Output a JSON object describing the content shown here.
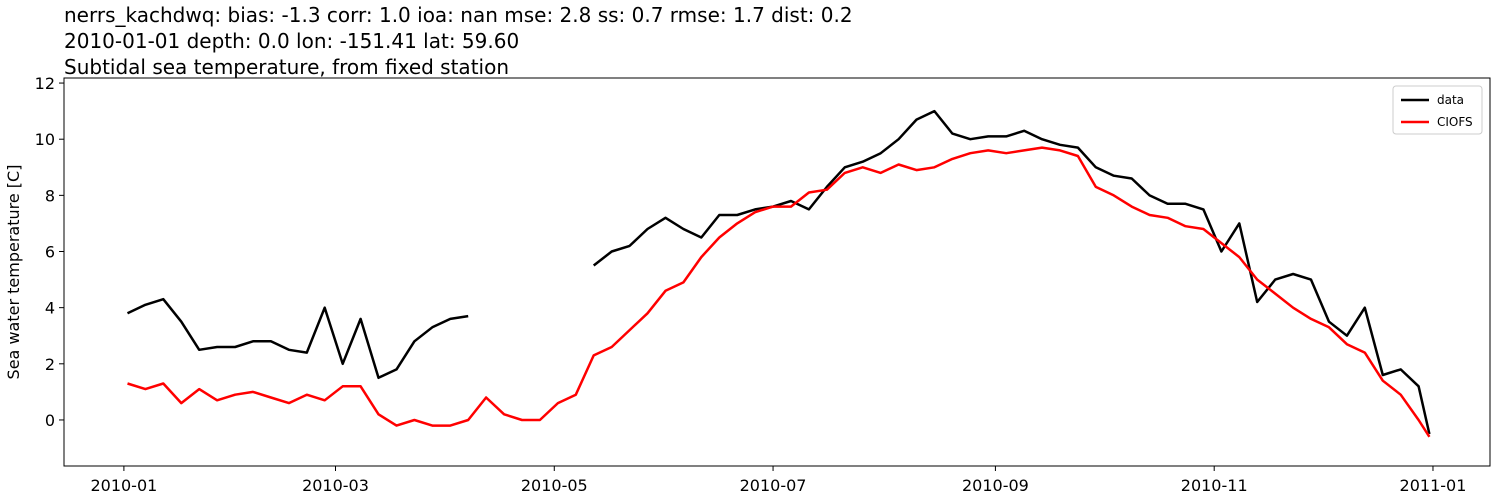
{
  "chart_data": {
    "type": "line",
    "title": "nerrs_kachdwq: bias: -1.3  corr: 1.0  ioa: nan  mse: 2.8  ss: 0.7  rmse: 1.7  dist: 0.2",
    "subtitle": "2010-01-01 depth: 0.0 lon: -151.41 lat: 59.60",
    "description": "Subtidal sea temperature, from fixed station",
    "y_label": "Sea water temperature [C]",
    "x": [
      1,
      6,
      11,
      16,
      21,
      26,
      31,
      36,
      41,
      46,
      51,
      56,
      61,
      66,
      71,
      76,
      81,
      86,
      91,
      96,
      101,
      106,
      111,
      116,
      121,
      126,
      131,
      136,
      141,
      146,
      151,
      156,
      161,
      166,
      171,
      176,
      181,
      186,
      191,
      196,
      201,
      206,
      211,
      216,
      221,
      226,
      231,
      236,
      241,
      246,
      251,
      256,
      261,
      266,
      271,
      276,
      281,
      286,
      291,
      296,
      301,
      306,
      311,
      316,
      321,
      326,
      331,
      336,
      341,
      346,
      351,
      356,
      361,
      364
    ],
    "series": [
      {
        "name": "data",
        "color": "#000000",
        "values": [
          3.8,
          4.1,
          4.3,
          3.5,
          2.5,
          2.6,
          2.6,
          2.8,
          2.8,
          2.5,
          2.4,
          4.0,
          2.0,
          3.6,
          1.5,
          1.8,
          2.8,
          3.3,
          3.6,
          3.7,
          null,
          null,
          null,
          null,
          null,
          null,
          5.5,
          6.0,
          6.2,
          6.8,
          7.2,
          6.8,
          6.5,
          7.3,
          7.3,
          7.5,
          7.6,
          7.8,
          7.5,
          8.3,
          9.0,
          9.2,
          9.5,
          10.0,
          10.7,
          11.0,
          10.2,
          10.0,
          10.1,
          10.1,
          10.3,
          10.0,
          9.8,
          9.7,
          9.0,
          8.7,
          8.6,
          8.0,
          7.7,
          7.7,
          7.5,
          6.0,
          7.0,
          4.2,
          5.0,
          5.2,
          5.0,
          3.5,
          3.0,
          4.0,
          1.6,
          1.8,
          1.2,
          -0.5
        ]
      },
      {
        "name": "CIOFS",
        "color": "#ff0000",
        "values": [
          1.3,
          1.1,
          1.3,
          0.6,
          1.1,
          0.7,
          0.9,
          1.0,
          0.8,
          0.6,
          0.9,
          0.7,
          1.2,
          1.2,
          0.2,
          -0.2,
          0.0,
          -0.2,
          -0.2,
          0.0,
          0.8,
          0.2,
          0.0,
          0.0,
          0.6,
          0.9,
          2.3,
          2.6,
          3.2,
          3.8,
          4.6,
          4.9,
          5.8,
          6.5,
          7.0,
          7.4,
          7.6,
          7.6,
          8.1,
          8.2,
          8.8,
          9.0,
          8.8,
          9.1,
          8.9,
          9.0,
          9.3,
          9.5,
          9.6,
          9.5,
          9.6,
          9.7,
          9.6,
          9.4,
          8.3,
          8.0,
          7.6,
          7.3,
          7.2,
          6.9,
          6.8,
          6.3,
          5.8,
          5.0,
          4.5,
          4.0,
          3.6,
          3.3,
          2.7,
          2.4,
          1.4,
          0.9,
          0.0,
          -0.6
        ]
      }
    ],
    "xlim": [
      -16.7,
      380.9
    ],
    "xticks": [
      {
        "value": 0,
        "label": "2010-01"
      },
      {
        "value": 59,
        "label": "2010-03"
      },
      {
        "value": 120,
        "label": "2010-05"
      },
      {
        "value": 181,
        "label": "2010-07"
      },
      {
        "value": 243,
        "label": "2010-09"
      },
      {
        "value": 304,
        "label": "2010-11"
      },
      {
        "value": 365,
        "label": "2011-01"
      }
    ],
    "ylim": [
      -1.64,
      12.18
    ],
    "yticks": [
      0,
      2,
      4,
      6,
      8,
      10,
      12
    ],
    "legend": "upper right"
  }
}
